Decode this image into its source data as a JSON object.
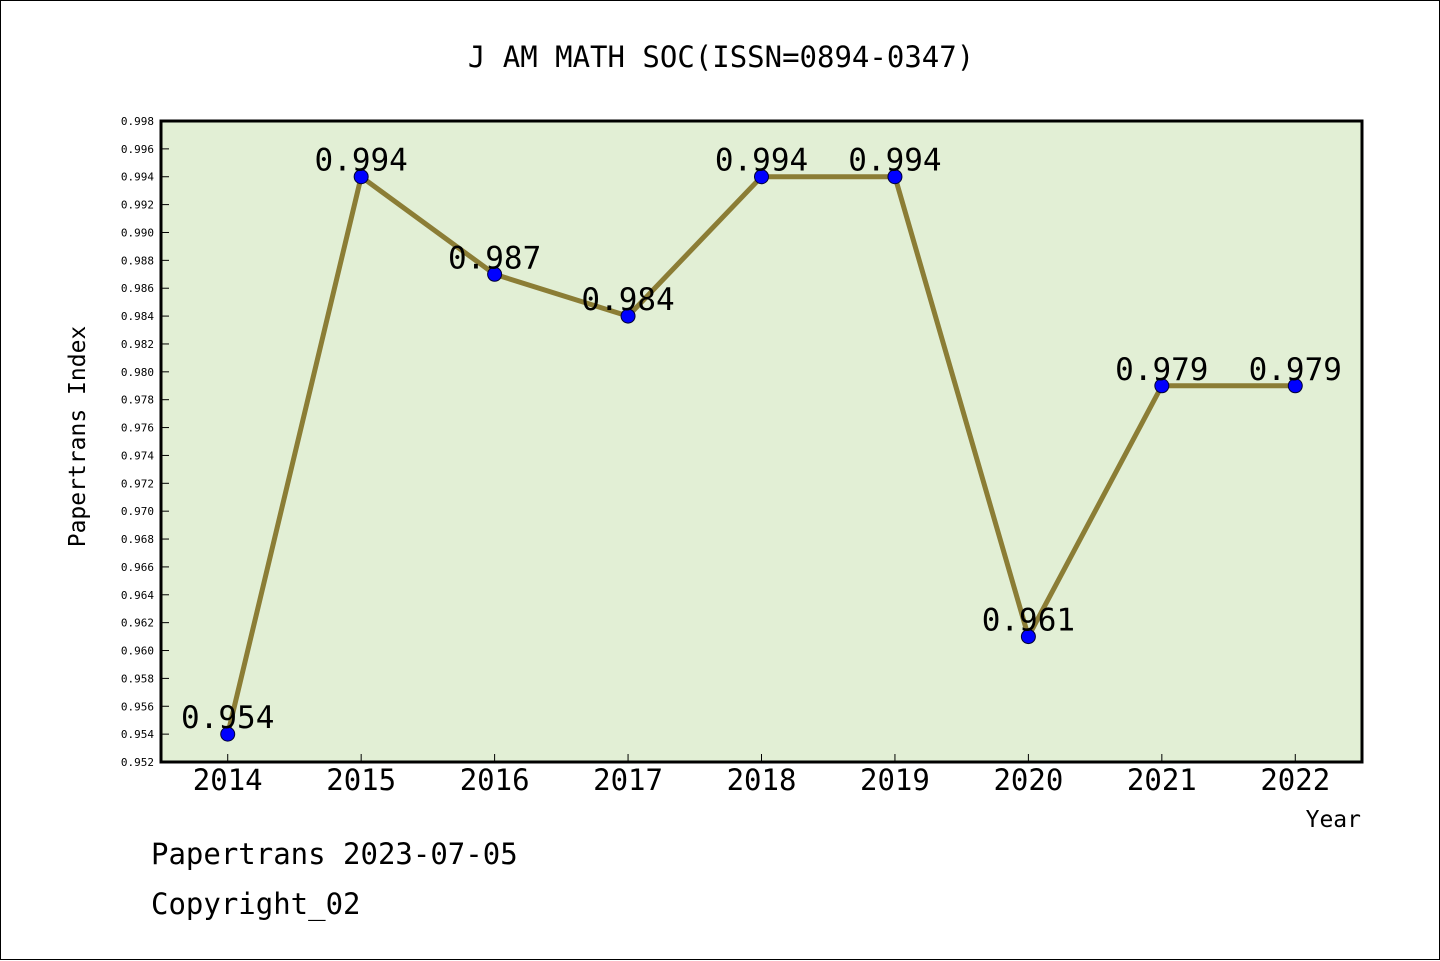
{
  "chart_data": {
    "type": "line",
    "title": "J AM MATH SOC(ISSN=0894-0347)",
    "xlabel": "Year",
    "ylabel": "Papertrans Index",
    "categories": [
      "2014",
      "2015",
      "2016",
      "2017",
      "2018",
      "2019",
      "2020",
      "2021",
      "2022"
    ],
    "values": [
      0.954,
      0.994,
      0.987,
      0.984,
      0.994,
      0.994,
      0.961,
      0.979,
      0.979
    ],
    "data_labels": [
      "0.954",
      "0.994",
      "0.987",
      "0.984",
      "0.994",
      "0.994",
      "0.961",
      "0.979",
      "0.979"
    ],
    "ylim": [
      0.952,
      0.998
    ],
    "yticks": [
      "0.952",
      "0.954",
      "0.956",
      "0.958",
      "0.960",
      "0.962",
      "0.964",
      "0.966",
      "0.968",
      "0.970",
      "0.972",
      "0.974",
      "0.976",
      "0.978",
      "0.980",
      "0.982",
      "0.984",
      "0.986",
      "0.988",
      "0.990",
      "0.992",
      "0.994",
      "0.996",
      "0.998"
    ],
    "grid": false,
    "colors": {
      "plot_background": "#e2efd5",
      "line": "#8b7d35",
      "marker": "#0000ff",
      "axes": "#000000"
    }
  },
  "footer": {
    "line1": "Papertrans 2023-07-05",
    "line2": "Copyright_02"
  }
}
